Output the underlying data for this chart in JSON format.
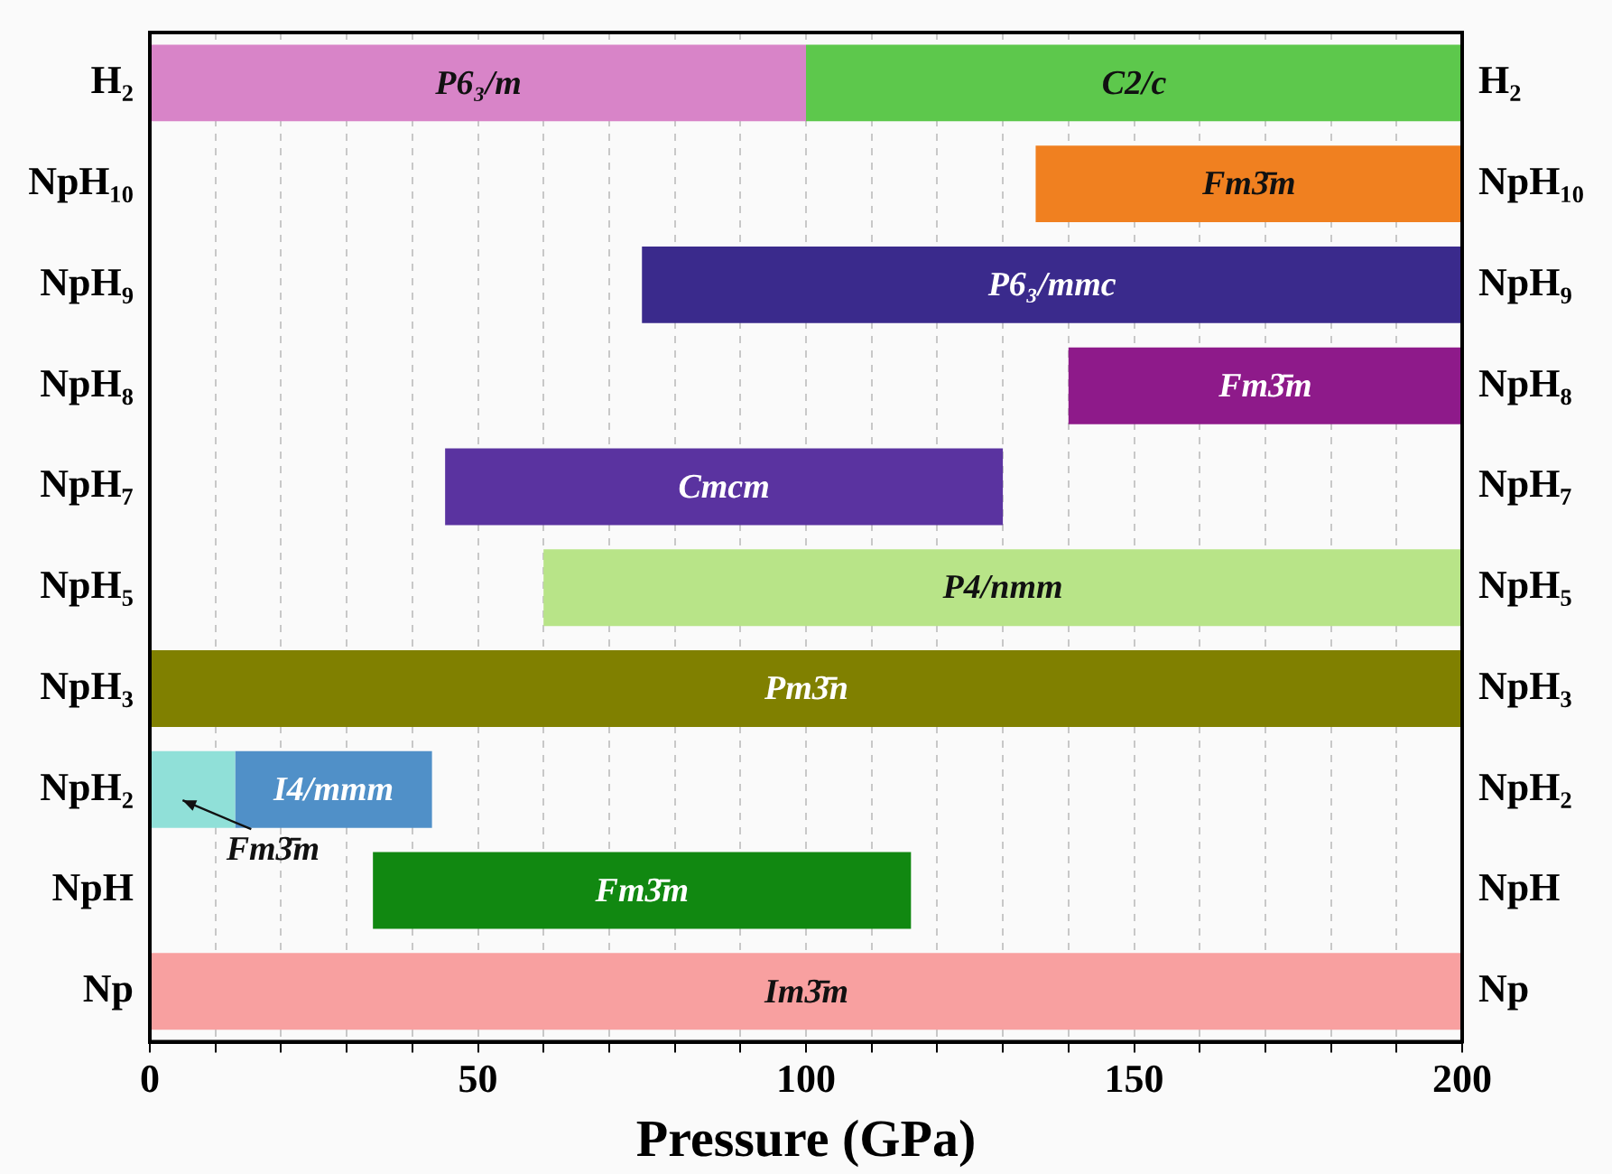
{
  "chart_data": {
    "type": "bar",
    "orientation": "horizontal",
    "xlabel": "Pressure (GPa)",
    "categories": [
      "H₂",
      "NpH₁₀",
      "NpH₉",
      "NpH₈",
      "NpH₇",
      "NpH₅",
      "NpH₃",
      "NpH₂",
      "NpH",
      "Np"
    ],
    "y2_categories": [
      "H₂",
      "NpH₁₀",
      "NpH₉",
      "NpH₈",
      "NpH₇",
      "NpH₅",
      "NpH₃",
      "NpH₂",
      "NpH",
      "Np"
    ],
    "series": [
      {
        "base": [
          0,
          135,
          75,
          140,
          45,
          60,
          0,
          0,
          34,
          0
        ],
        "values": [
          100,
          65,
          125,
          60,
          85,
          140,
          200,
          13,
          82,
          200
        ],
        "colors": [
          "#d884c8",
          "#f08020",
          "#3a2a8c",
          "#8e1a8a",
          "#5a33a0",
          "#b8e488",
          "#808000",
          "#90e0d8",
          "#118811",
          "#f8a0a0"
        ],
        "value_labels": [
          "P6₃/m",
          "Fm3̄m",
          "P6₃/mmc",
          "Fm3̄m",
          "Cmcm",
          "P4/nmm",
          "Pm3̄n",
          null,
          "Fm3̄m",
          "Im3̄m"
        ]
      },
      {
        "base": [
          100,
          null,
          null,
          null,
          null,
          null,
          null,
          13,
          null,
          null
        ],
        "values": [
          100,
          null,
          null,
          null,
          null,
          null,
          null,
          30,
          null,
          null
        ],
        "colors": [
          "#5dc84c",
          null,
          null,
          null,
          null,
          null,
          null,
          "#5090c8",
          null,
          null
        ],
        "value_labels": [
          "C2/c",
          null,
          null,
          null,
          null,
          null,
          null,
          "I4/mmm",
          null,
          null
        ]
      }
    ],
    "annotations": [
      {
        "text": "Fm3̄m",
        "x": 5,
        "y": "NpH₂"
      }
    ],
    "xlim": [
      0,
      200
    ],
    "xticks": [
      0,
      {
        "value": 10,
        "label": null
      },
      {
        "value": 20,
        "label": null
      },
      {
        "value": 30,
        "label": null
      },
      {
        "value": 40,
        "label": null
      },
      50,
      {
        "value": 60,
        "label": null
      },
      {
        "value": 70,
        "label": null
      },
      {
        "value": 80,
        "label": null
      },
      {
        "value": 90,
        "label": null
      },
      100,
      {
        "value": 110,
        "label": null
      },
      {
        "value": 120,
        "label": null
      },
      {
        "value": 130,
        "label": null
      },
      {
        "value": 140,
        "label": null
      },
      150,
      {
        "value": 160,
        "label": null
      },
      {
        "value": 170,
        "label": null
      },
      {
        "value": 180,
        "label": null
      },
      {
        "value": 190,
        "label": null
      },
      200
    ],
    "grid": "x",
    "legend": false
  }
}
